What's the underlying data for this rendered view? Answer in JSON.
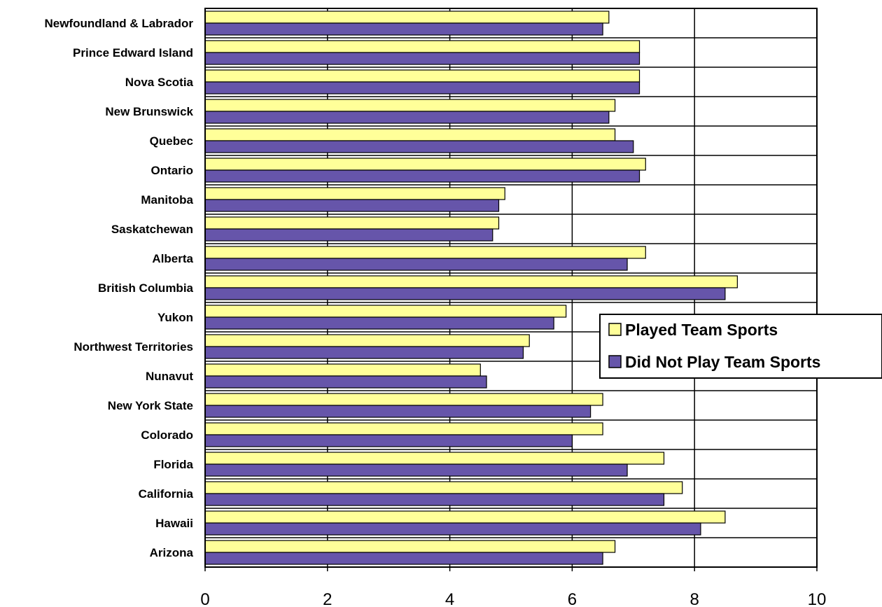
{
  "chart_data": {
    "type": "bar",
    "orientation": "horizontal",
    "categories": [
      "Newfoundland & Labrador",
      "Prince Edward Island",
      "Nova Scotia",
      "New Brunswick",
      "Quebec",
      "Ontario",
      "Manitoba",
      "Saskatchewan",
      "Alberta",
      "British Columbia",
      "Yukon",
      "Northwest Territories",
      "Nunavut",
      "New York State",
      "Colorado",
      "Florida",
      "California",
      "Hawaii",
      "Arizona"
    ],
    "series": [
      {
        "name": "Played Team Sports",
        "color": "#FFFF99",
        "values": [
          6.6,
          7.1,
          7.1,
          6.7,
          6.7,
          7.2,
          4.9,
          4.8,
          7.2,
          8.7,
          5.9,
          5.3,
          4.5,
          6.5,
          6.5,
          7.5,
          7.8,
          8.5,
          6.7
        ]
      },
      {
        "name": "Did Not Play Team Sports",
        "color": "#6655AA",
        "values": [
          6.5,
          7.1,
          7.1,
          6.6,
          7.0,
          7.1,
          4.8,
          4.7,
          6.9,
          8.5,
          5.7,
          5.2,
          4.6,
          6.3,
          6.0,
          6.9,
          7.5,
          8.1,
          6.5
        ]
      }
    ],
    "xlim": [
      0,
      10
    ],
    "xticks": [
      "0",
      "2",
      "4",
      "6",
      "8",
      "10"
    ],
    "title": "",
    "xlabel": "",
    "ylabel": "",
    "grid": "vertical and horizontal",
    "legend": "right"
  }
}
